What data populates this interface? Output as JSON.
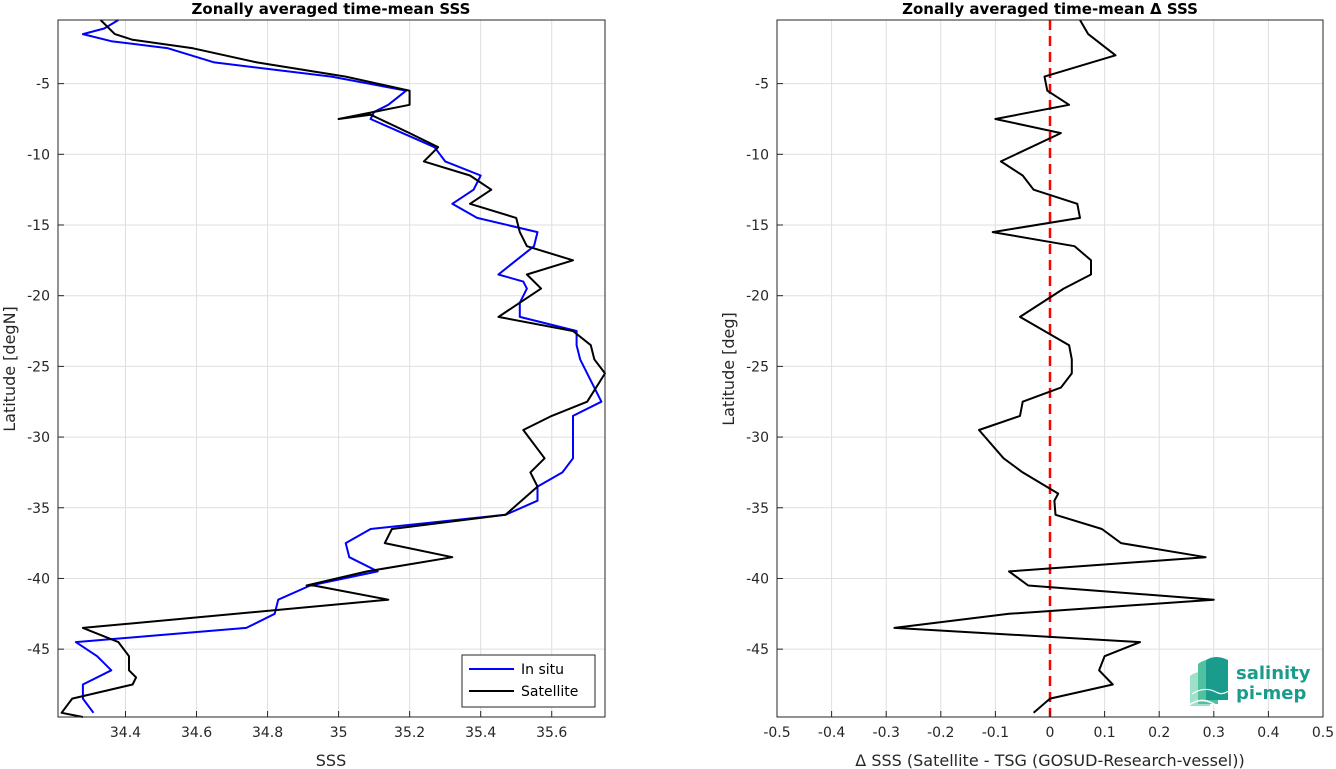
{
  "colors": {
    "in_situ": "#0000ff",
    "satellite": "#000000",
    "zero_line": "#ff0000",
    "grid": "#dfdfdf",
    "axes": "#262626",
    "logo": "#1a9c8c"
  },
  "logo": {
    "line1": "salinity",
    "line2": "pi-mep",
    "icon": "waves-icon"
  },
  "chart_data": [
    {
      "type": "line",
      "title": "Zonally averaged time-mean SSS",
      "xlabel": "SSS",
      "ylabel": "Latitude [degN]",
      "xlim": [
        34.21,
        35.75
      ],
      "ylim": [
        -49.8,
        -0.5
      ],
      "xticks": [
        34.4,
        34.6,
        34.8,
        35,
        35.2,
        35.4,
        35.6
      ],
      "xtick_labels": [
        "34.4",
        "34.6",
        "34.8",
        "35",
        "35.2",
        "35.4",
        "35.6"
      ],
      "yticks": [
        -5,
        -10,
        -15,
        -20,
        -25,
        -30,
        -35,
        -40,
        -45
      ],
      "ytick_labels": [
        "-5",
        "-10",
        "-15",
        "-20",
        "-25",
        "-30",
        "-35",
        "-40",
        "-45"
      ],
      "grid": true,
      "legend": {
        "placement": "bottom-right",
        "entries": [
          "In situ",
          "Satellite"
        ]
      },
      "series": [
        {
          "name": "In situ",
          "color": "#0000ff",
          "points": [
            [
              34.38,
              -0.5
            ],
            [
              34.34,
              -1.1
            ],
            [
              34.28,
              -1.5
            ],
            [
              34.36,
              -2.0
            ],
            [
              34.52,
              -2.5
            ],
            [
              34.65,
              -3.5
            ],
            [
              34.98,
              -4.5
            ],
            [
              35.19,
              -5.5
            ],
            [
              35.14,
              -6.5
            ],
            [
              35.1,
              -7.0
            ],
            [
              35.09,
              -7.5
            ],
            [
              35.18,
              -8.5
            ],
            [
              35.27,
              -9.5
            ],
            [
              35.3,
              -10.5
            ],
            [
              35.4,
              -11.5
            ],
            [
              35.38,
              -12.5
            ],
            [
              35.32,
              -13.5
            ],
            [
              35.39,
              -14.5
            ],
            [
              35.56,
              -15.5
            ],
            [
              35.55,
              -16.5
            ],
            [
              35.5,
              -17.5
            ],
            [
              35.45,
              -18.5
            ],
            [
              35.52,
              -19.0
            ],
            [
              35.53,
              -19.5
            ],
            [
              35.51,
              -20.5
            ],
            [
              35.51,
              -21.5
            ],
            [
              35.67,
              -22.5
            ],
            [
              35.67,
              -23.5
            ],
            [
              35.68,
              -24.5
            ],
            [
              35.72,
              -26.5
            ],
            [
              35.74,
              -27.5
            ],
            [
              35.66,
              -28.5
            ],
            [
              35.66,
              -30.5
            ],
            [
              35.66,
              -31.5
            ],
            [
              35.63,
              -32.5
            ],
            [
              35.56,
              -33.5
            ],
            [
              35.56,
              -34.5
            ],
            [
              35.47,
              -35.5
            ],
            [
              35.09,
              -36.5
            ],
            [
              35.02,
              -37.5
            ],
            [
              35.03,
              -38.5
            ],
            [
              35.11,
              -39.5
            ],
            [
              34.92,
              -40.5
            ],
            [
              34.83,
              -41.5
            ],
            [
              34.82,
              -42.5
            ],
            [
              34.74,
              -43.5
            ],
            [
              34.26,
              -44.5
            ],
            [
              34.32,
              -45.5
            ],
            [
              34.36,
              -46.5
            ],
            [
              34.28,
              -47.5
            ],
            [
              34.28,
              -48.5
            ],
            [
              34.31,
              -49.5
            ]
          ]
        },
        {
          "name": "Satellite",
          "color": "#000000",
          "points": [
            [
              34.33,
              -0.5
            ],
            [
              34.37,
              -1.5
            ],
            [
              34.42,
              -1.9
            ],
            [
              34.59,
              -2.5
            ],
            [
              34.77,
              -3.5
            ],
            [
              35.02,
              -4.5
            ],
            [
              35.2,
              -5.5
            ],
            [
              35.2,
              -6.5
            ],
            [
              35.0,
              -7.5
            ],
            [
              35.09,
              -7.2
            ],
            [
              35.2,
              -8.5
            ],
            [
              35.28,
              -9.5
            ],
            [
              35.24,
              -10.5
            ],
            [
              35.37,
              -11.5
            ],
            [
              35.43,
              -12.5
            ],
            [
              35.37,
              -13.5
            ],
            [
              35.5,
              -14.5
            ],
            [
              35.51,
              -15.5
            ],
            [
              35.53,
              -16.5
            ],
            [
              35.66,
              -17.5
            ],
            [
              35.53,
              -18.5
            ],
            [
              35.57,
              -19.5
            ],
            [
              35.45,
              -21.5
            ],
            [
              35.66,
              -22.5
            ],
            [
              35.71,
              -23.5
            ],
            [
              35.72,
              -24.5
            ],
            [
              35.75,
              -25.5
            ],
            [
              35.7,
              -27.5
            ],
            [
              35.6,
              -28.5
            ],
            [
              35.52,
              -29.5
            ],
            [
              35.58,
              -31.5
            ],
            [
              35.54,
              -32.5
            ],
            [
              35.56,
              -33.5
            ],
            [
              35.47,
              -35.5
            ],
            [
              35.15,
              -36.5
            ],
            [
              35.13,
              -37.5
            ],
            [
              35.32,
              -38.5
            ],
            [
              35.08,
              -39.5
            ],
            [
              34.91,
              -40.5
            ],
            [
              34.93,
              -40.5
            ],
            [
              35.14,
              -41.5
            ],
            [
              34.28,
              -43.5
            ],
            [
              34.38,
              -44.5
            ],
            [
              34.41,
              -45.5
            ],
            [
              34.41,
              -46.5
            ],
            [
              34.43,
              -47.0
            ],
            [
              34.42,
              -47.5
            ],
            [
              34.25,
              -48.5
            ],
            [
              34.22,
              -49.5
            ],
            [
              34.28,
              -49.8
            ]
          ]
        }
      ]
    },
    {
      "type": "line",
      "title": "Zonally averaged time-mean Δ SSS",
      "xlabel": "Δ SSS (Satellite - TSG (GOSUD-Research-vessel))",
      "ylabel": "Latitude [deg]",
      "xlim": [
        -0.5,
        0.5
      ],
      "ylim": [
        -49.8,
        -0.5
      ],
      "xticks": [
        -0.5,
        -0.4,
        -0.3,
        -0.2,
        -0.1,
        0,
        0.1,
        0.2,
        0.3,
        0.4,
        0.5
      ],
      "xtick_labels": [
        "-0.5",
        "-0.4",
        "-0.3",
        "-0.2",
        "-0.1",
        "0",
        "0.1",
        "0.2",
        "0.3",
        "0.4",
        "0.5"
      ],
      "yticks": [
        -5,
        -10,
        -15,
        -20,
        -25,
        -30,
        -35,
        -40,
        -45
      ],
      "ytick_labels": [
        "-5",
        "-10",
        "-15",
        "-20",
        "-25",
        "-30",
        "-35",
        "-40",
        "-45"
      ],
      "grid": true,
      "reference_line": {
        "x": 0,
        "style": "dashed",
        "color": "#ff0000"
      },
      "series": [
        {
          "color": "#000000",
          "points": [
            [
              0.055,
              -0.5
            ],
            [
              0.07,
              -1.5
            ],
            [
              0.12,
              -3.0
            ],
            [
              -0.01,
              -4.5
            ],
            [
              -0.005,
              -5.5
            ],
            [
              0.035,
              -6.5
            ],
            [
              -0.1,
              -7.5
            ],
            [
              0.02,
              -8.5
            ],
            [
              -0.09,
              -10.5
            ],
            [
              -0.05,
              -11.5
            ],
            [
              -0.03,
              -12.5
            ],
            [
              0.05,
              -13.5
            ],
            [
              0.055,
              -14.5
            ],
            [
              -0.105,
              -15.5
            ],
            [
              0.045,
              -16.5
            ],
            [
              0.075,
              -17.5
            ],
            [
              0.075,
              -18.5
            ],
            [
              0.025,
              -19.5
            ],
            [
              -0.055,
              -21.5
            ],
            [
              0.035,
              -23.5
            ],
            [
              0.04,
              -24.5
            ],
            [
              0.04,
              -25.5
            ],
            [
              0.02,
              -26.5
            ],
            [
              -0.05,
              -27.5
            ],
            [
              -0.055,
              -28.5
            ],
            [
              -0.13,
              -29.5
            ],
            [
              -0.085,
              -31.5
            ],
            [
              -0.05,
              -32.5
            ],
            [
              0.015,
              -34.0
            ],
            [
              0.008,
              -34.5
            ],
            [
              0.01,
              -35.5
            ],
            [
              0.095,
              -36.5
            ],
            [
              0.13,
              -37.5
            ],
            [
              0.285,
              -38.5
            ],
            [
              -0.075,
              -39.5
            ],
            [
              -0.04,
              -40.5
            ],
            [
              0.3,
              -41.5
            ],
            [
              -0.075,
              -42.5
            ],
            [
              -0.285,
              -43.5
            ],
            [
              0.165,
              -44.5
            ],
            [
              0.1,
              -45.5
            ],
            [
              0.09,
              -46.5
            ],
            [
              0.115,
              -47.5
            ],
            [
              0.0,
              -48.5
            ],
            [
              -0.03,
              -49.5
            ]
          ]
        }
      ]
    }
  ]
}
